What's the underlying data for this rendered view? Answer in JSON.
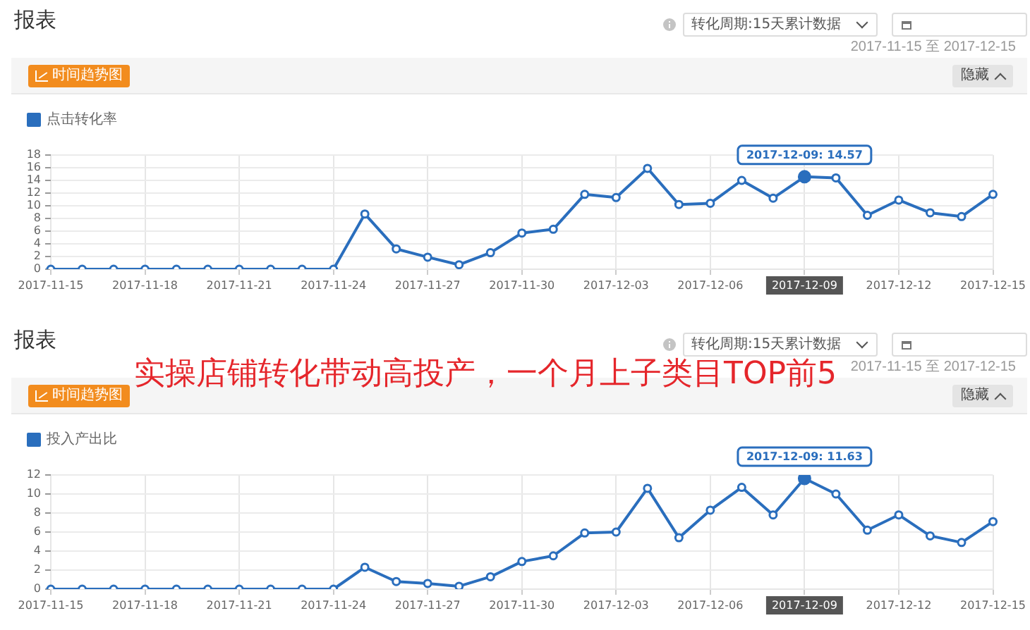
{
  "chart_data": [
    {
      "type": "line",
      "title": "报表",
      "subtitle": "2017-11-15 至 2017-12-15",
      "categories": [
        "2017-11-15",
        null,
        null,
        "2017-11-18",
        null,
        null,
        "2017-11-21",
        null,
        null,
        "2017-11-24",
        null,
        null,
        "2017-11-27",
        null,
        null,
        "2017-11-30",
        null,
        null,
        "2017-12-03",
        null,
        null,
        "2017-12-06",
        null,
        null,
        "2017-12-09",
        null,
        null,
        "2017-12-12",
        null,
        null,
        "2017-12-15"
      ],
      "series": [
        {
          "name": "点击转化率",
          "color": "#2a6ebd",
          "values": [
            0,
            0,
            0,
            0,
            0,
            0,
            0,
            0,
            0,
            0,
            8.7,
            3.2,
            1.9,
            0.7,
            2.6,
            5.7,
            6.3,
            11.8,
            11.3,
            15.9,
            10.2,
            10.4,
            14,
            11.2,
            14.57,
            14.4,
            8.5,
            10.9,
            8.9,
            8.3,
            11.8
          ]
        }
      ],
      "ylim": [
        0,
        18
      ],
      "yticks": [
        0,
        2,
        4,
        6,
        8,
        10,
        12,
        14,
        16,
        18
      ],
      "grid": true,
      "legend": "top left",
      "marker": "circle",
      "line_style": "solid",
      "annotations": [
        "转化周期:15天累计数据",
        "时间趋势图",
        "隐藏",
        {
          "text": "2017-12-09: 14.57",
          "x": "2017-12-09",
          "y": 14.57
        }
      ]
    },
    {
      "type": "line",
      "title": "报表",
      "subtitle": "2017-11-15 至 2017-12-15",
      "categories": [
        "2017-11-15",
        null,
        null,
        "2017-11-18",
        null,
        null,
        "2017-11-21",
        null,
        null,
        "2017-11-24",
        null,
        null,
        "2017-11-27",
        null,
        null,
        "2017-11-30",
        null,
        null,
        "2017-12-03",
        null,
        null,
        "2017-12-06",
        null,
        null,
        "2017-12-09",
        null,
        null,
        "2017-12-12",
        null,
        null,
        "2017-12-15"
      ],
      "series": [
        {
          "name": "投入产出比",
          "color": "#2a6ebd",
          "values": [
            0,
            0,
            0,
            0,
            0,
            0,
            0,
            0,
            0,
            0,
            2.3,
            0.8,
            0.6,
            0.3,
            1.3,
            2.9,
            3.5,
            5.9,
            6,
            10.6,
            5.4,
            8.3,
            10.7,
            7.8,
            11.63,
            10,
            6.2,
            7.8,
            5.6,
            4.9,
            7.1
          ]
        }
      ],
      "ylim": [
        0,
        12
      ],
      "yticks": [
        0,
        2,
        4,
        6,
        8,
        10,
        12
      ],
      "grid": true,
      "legend": "top left",
      "marker": "circle",
      "line_style": "solid",
      "annotations": [
        "转化周期:15天累计数据",
        "时间趋势图",
        "隐藏",
        {
          "text": "2017-12-09: 11.63",
          "x": "2017-12-09",
          "y": 11.63
        },
        "实操店铺转化带动高投产，一个月上子类目TOP前5"
      ]
    }
  ]
}
